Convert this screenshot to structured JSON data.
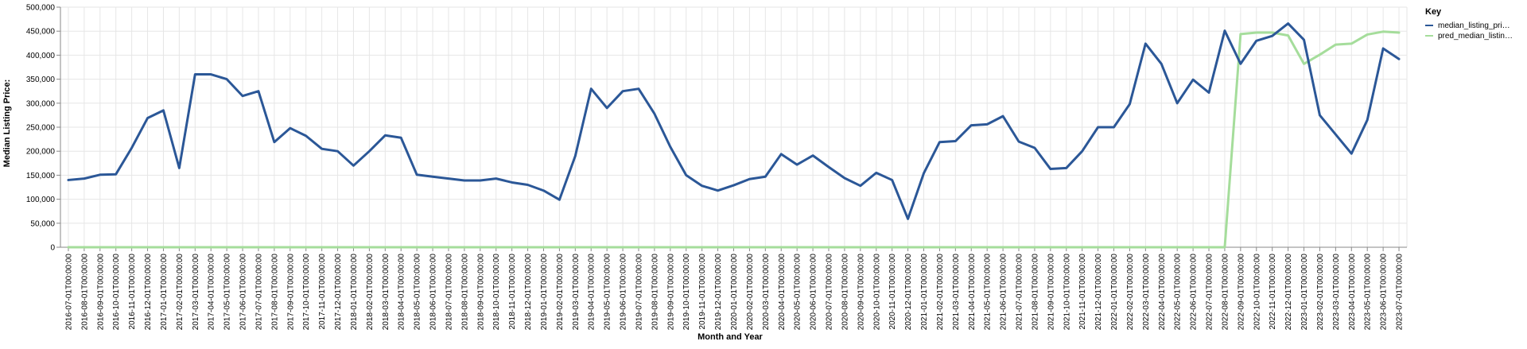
{
  "chart_data": {
    "type": "line",
    "xlabel": "Month and Year",
    "ylabel": "Median Listing Price:",
    "ylim": [
      0,
      500000
    ],
    "yticks": [
      0,
      50000,
      100000,
      150000,
      200000,
      250000,
      300000,
      350000,
      400000,
      450000,
      500000
    ],
    "ytick_labels": [
      "0",
      "50,000",
      "100,000",
      "150,000",
      "200,000",
      "250,000",
      "300,000",
      "350,000",
      "400,000",
      "450,000",
      "500,000"
    ],
    "grid": true,
    "legend": {
      "title": "Key",
      "position": "top-right",
      "entries": [
        "median_listing_pri…",
        "pred_median_listin…"
      ]
    },
    "colors": {
      "median": "#2b5797",
      "pred": "#a5dd9b",
      "grid": "#e6e6e6",
      "axis": "#888888"
    },
    "x": [
      "2016-07-01T00:00:00",
      "2016-08-01T00:00:00",
      "2016-09-01T00:00:00",
      "2016-10-01T00:00:00",
      "2016-11-01T00:00:00",
      "2016-12-01T00:00:00",
      "2017-01-01T00:00:00",
      "2017-02-01T00:00:00",
      "2017-03-01T00:00:00",
      "2017-04-01T00:00:00",
      "2017-05-01T00:00:00",
      "2017-06-01T00:00:00",
      "2017-07-01T00:00:00",
      "2017-08-01T00:00:00",
      "2017-09-01T00:00:00",
      "2017-10-01T00:00:00",
      "2017-11-01T00:00:00",
      "2017-12-01T00:00:00",
      "2018-01-01T00:00:00",
      "2018-02-01T00:00:00",
      "2018-03-01T00:00:00",
      "2018-04-01T00:00:00",
      "2018-05-01T00:00:00",
      "2018-06-01T00:00:00",
      "2018-07-01T00:00:00",
      "2018-08-01T00:00:00",
      "2018-09-01T00:00:00",
      "2018-10-01T00:00:00",
      "2018-11-01T00:00:00",
      "2018-12-01T00:00:00",
      "2019-01-01T00:00:00",
      "2019-02-01T00:00:00",
      "2019-03-01T00:00:00",
      "2019-04-01T00:00:00",
      "2019-05-01T00:00:00",
      "2019-06-01T00:00:00",
      "2019-07-01T00:00:00",
      "2019-08-01T00:00:00",
      "2019-09-01T00:00:00",
      "2019-10-01T00:00:00",
      "2019-11-01T00:00:00",
      "2019-12-01T00:00:00",
      "2020-01-01T00:00:00",
      "2020-02-01T00:00:00",
      "2020-03-01T00:00:00",
      "2020-04-01T00:00:00",
      "2020-05-01T00:00:00",
      "2020-06-01T00:00:00",
      "2020-07-01T00:00:00",
      "2020-08-01T00:00:00",
      "2020-09-01T00:00:00",
      "2020-10-01T00:00:00",
      "2020-11-01T00:00:00",
      "2020-12-01T00:00:00",
      "2021-01-01T00:00:00",
      "2021-02-01T00:00:00",
      "2021-03-01T00:00:00",
      "2021-04-01T00:00:00",
      "2021-05-01T00:00:00",
      "2021-06-01T00:00:00",
      "2021-07-01T00:00:00",
      "2021-08-01T00:00:00",
      "2021-09-01T00:00:00",
      "2021-10-01T00:00:00",
      "2021-11-01T00:00:00",
      "2021-12-01T00:00:00",
      "2022-01-01T00:00:00",
      "2022-02-01T00:00:00",
      "2022-03-01T00:00:00",
      "2022-04-01T00:00:00",
      "2022-05-01T00:00:00",
      "2022-06-01T00:00:00",
      "2022-07-01T00:00:00",
      "2022-08-01T00:00:00",
      "2022-09-01T00:00:00",
      "2022-10-01T00:00:00",
      "2022-11-01T00:00:00",
      "2022-12-01T00:00:00",
      "2023-01-01T00:00:00",
      "2023-02-01T00:00:00",
      "2023-03-01T00:00:00",
      "2023-04-01T00:00:00",
      "2023-05-01T00:00:00",
      "2023-06-01T00:00:00",
      "2023-07-01T00:00:00"
    ],
    "series": [
      {
        "name": "median_listing_pri…",
        "values": [
          140000,
          143000,
          151000,
          152000,
          207000,
          269000,
          285000,
          165000,
          360000,
          360000,
          350000,
          315000,
          325000,
          219000,
          248000,
          232000,
          205000,
          200000,
          170000,
          200000,
          233000,
          228000,
          151000,
          147000,
          143000,
          139000,
          139000,
          143000,
          135000,
          130000,
          118000,
          99000,
          190000,
          330000,
          290000,
          325000,
          330000,
          278000,
          209000,
          150000,
          128000,
          118000,
          129000,
          142000,
          147000,
          194000,
          172000,
          191000,
          167000,
          144000,
          128000,
          155000,
          140000,
          59000,
          154000,
          219000,
          221000,
          254000,
          256000,
          273000,
          220000,
          207000,
          163000,
          165000,
          200000,
          250000,
          250000,
          298000,
          424000,
          382000,
          300000,
          349000,
          322000,
          451000,
          382000,
          430000,
          440000,
          466000,
          432000,
          275000,
          235000,
          195000,
          265000,
          414000,
          392000
        ]
      },
      {
        "name": "pred_median_listin…",
        "values": [
          0,
          0,
          0,
          0,
          0,
          0,
          0,
          0,
          0,
          0,
          0,
          0,
          0,
          0,
          0,
          0,
          0,
          0,
          0,
          0,
          0,
          0,
          0,
          0,
          0,
          0,
          0,
          0,
          0,
          0,
          0,
          0,
          0,
          0,
          0,
          0,
          0,
          0,
          0,
          0,
          0,
          0,
          0,
          0,
          0,
          0,
          0,
          0,
          0,
          0,
          0,
          0,
          0,
          0,
          0,
          0,
          0,
          0,
          0,
          0,
          0,
          0,
          0,
          0,
          0,
          0,
          0,
          0,
          0,
          0,
          0,
          0,
          0,
          0,
          444000,
          447000,
          447000,
          441000,
          382000,
          401000,
          422000,
          424000,
          443000,
          449000,
          447000
        ]
      }
    ]
  }
}
